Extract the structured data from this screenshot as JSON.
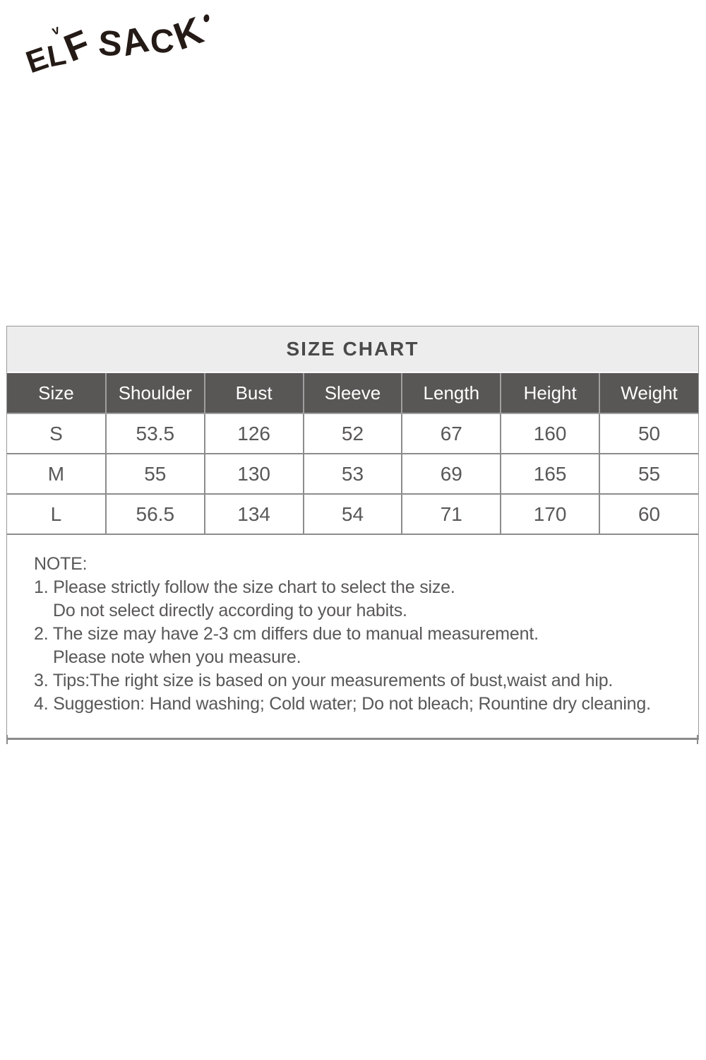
{
  "brand": {
    "logo_text": "ELF SACK"
  },
  "size_chart": {
    "title": "SIZE CHART",
    "columns": [
      "Size",
      "Shoulder",
      "Bust",
      "Sleeve",
      "Length",
      "Height",
      "Weight"
    ],
    "rows": [
      [
        "S",
        "53.5",
        "126",
        "52",
        "67",
        "160",
        "50"
      ],
      [
        "M",
        "55",
        "130",
        "53",
        "69",
        "165",
        "55"
      ],
      [
        "L",
        "56.5",
        "134",
        "54",
        "71",
        "170",
        "60"
      ]
    ]
  },
  "notes": {
    "heading": "NOTE:",
    "lines": [
      "1. Please strictly follow the size chart to select the size.",
      "Do not select directly according to your habits.",
      "2. The size may have 2-3 cm differs due to manual measurement.",
      "Please note when you measure.",
      "3. Tips:The right size is based on your measurements of bust,waist and hip.",
      "4. Suggestion: Hand washing; Cold water; Do not bleach; Rountine dry cleaning."
    ]
  },
  "colors": {
    "logo": "#241a16",
    "title_band_bg": "#ededed",
    "title_text": "#4a4a4a",
    "header_row_bg": "#595656",
    "header_row_text": "#ffffff",
    "body_text": "#595757",
    "grid_border": "#8c8c8c",
    "page_bg": "#ffffff"
  }
}
